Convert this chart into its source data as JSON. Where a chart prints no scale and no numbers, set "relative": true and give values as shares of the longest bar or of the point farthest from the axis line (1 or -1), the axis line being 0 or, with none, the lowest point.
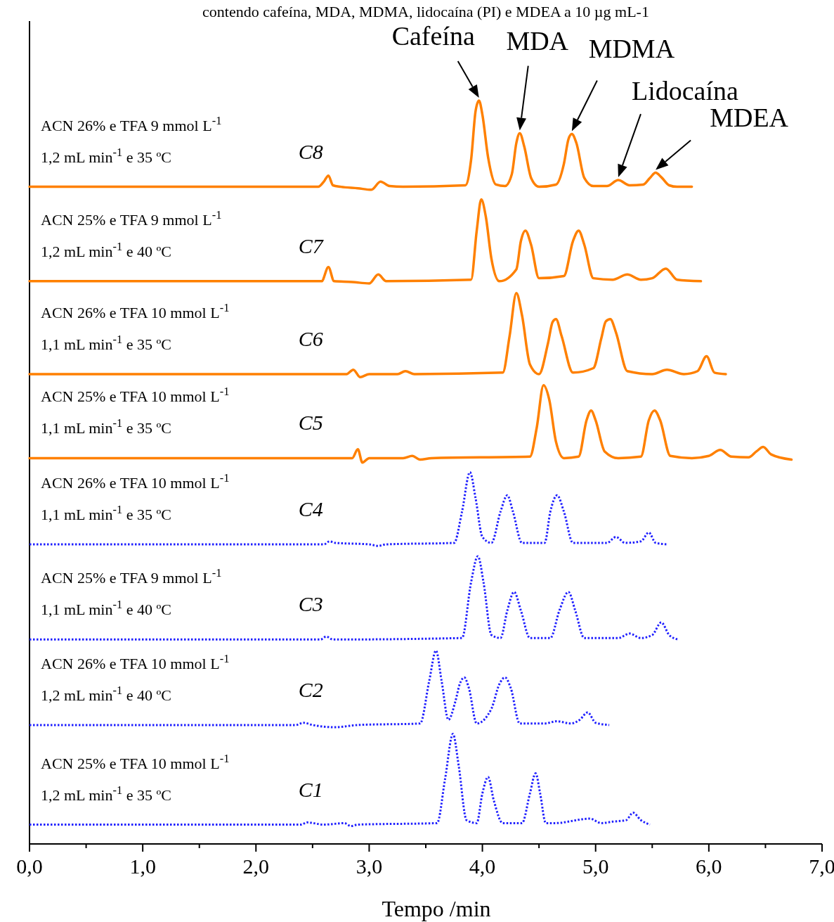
{
  "chart_data": {
    "type": "line",
    "relative": true,
    "title": "contendo cafeína, MDA, MDMA, lidocaína (PI) e MDEA a 10 µg mL-1",
    "xlabel": "Tempo /min",
    "xlim": [
      0,
      7
    ],
    "xticks": [
      {
        "value": 0,
        "label": "0,0"
      },
      {
        "value": 0.5,
        "label": null
      },
      {
        "value": 1,
        "label": "1,0"
      },
      {
        "value": 1.5,
        "label": null
      },
      {
        "value": 2,
        "label": "2,0"
      },
      {
        "value": 2.5,
        "label": null
      },
      {
        "value": 3,
        "label": "3,0"
      },
      {
        "value": 3.5,
        "label": null
      },
      {
        "value": 4,
        "label": "4,0"
      },
      {
        "value": 4.5,
        "label": null
      },
      {
        "value": 5,
        "label": "5,0"
      },
      {
        "value": 5.5,
        "label": null
      },
      {
        "value": 6,
        "label": "6,0"
      },
      {
        "value": 6.5,
        "label": null
      },
      {
        "value": 7,
        "label": "7,0"
      }
    ],
    "legend": false,
    "series": [
      {
        "name": "C8",
        "color": "#ff8000",
        "line_style": "solid",
        "x": [
          0,
          2.55,
          2.6,
          2.64,
          2.68,
          2.75,
          2.9,
          3.02,
          3.1,
          3.18,
          3.3,
          3.85,
          3.9,
          3.94,
          3.97,
          4.0,
          4.05,
          4.12,
          4.2,
          4.26,
          4.3,
          4.33,
          4.37,
          4.43,
          4.5,
          4.65,
          4.72,
          4.76,
          4.79,
          4.83,
          4.9,
          4.98,
          5.1,
          5.2,
          5.3,
          5.42,
          5.48,
          5.53,
          5.58,
          5.65,
          5.72,
          5.85
        ],
        "values": [
          0.884,
          0.884,
          0.891,
          0.899,
          0.886,
          0.884,
          0.882,
          0.88,
          0.891,
          0.885,
          0.884,
          0.886,
          0.92,
          0.986,
          1,
          0.981,
          0.924,
          0.887,
          0.885,
          0.901,
          0.943,
          0.956,
          0.938,
          0.896,
          0.884,
          0.887,
          0.915,
          0.948,
          0.955,
          0.943,
          0.896,
          0.885,
          0.885,
          0.893,
          0.886,
          0.887,
          0.896,
          0.903,
          0.897,
          0.886,
          0.884,
          0.884
        ]
      },
      {
        "name": "C7",
        "color": "#ff8000",
        "line_style": "solid",
        "x": [
          0,
          2.58,
          2.64,
          2.69,
          2.85,
          3.0,
          3.08,
          3.15,
          3.9,
          3.95,
          3.99,
          4.03,
          4.08,
          4.15,
          4.3,
          4.34,
          4.38,
          4.43,
          4.5,
          4.72,
          4.8,
          4.85,
          4.9,
          4.98,
          5.15,
          5.28,
          5.4,
          5.5,
          5.62,
          5.72,
          5.93
        ],
        "values": [
          0.757,
          0.757,
          0.776,
          0.757,
          0.756,
          0.754,
          0.766,
          0.757,
          0.759,
          0.825,
          0.867,
          0.844,
          0.787,
          0.757,
          0.773,
          0.811,
          0.825,
          0.806,
          0.761,
          0.764,
          0.811,
          0.825,
          0.806,
          0.761,
          0.759,
          0.766,
          0.759,
          0.761,
          0.774,
          0.759,
          0.757
        ]
      },
      {
        "name": "C6",
        "color": "#ff8000",
        "line_style": "solid",
        "x": [
          0,
          2.8,
          2.86,
          2.92,
          3.0,
          3.25,
          3.32,
          3.4,
          4.18,
          4.24,
          4.3,
          4.35,
          4.42,
          4.5,
          4.58,
          4.62,
          4.65,
          4.7,
          4.8,
          4.98,
          5.05,
          5.09,
          5.13,
          5.18,
          5.28,
          5.5,
          5.63,
          5.78,
          5.9,
          5.98,
          6.05,
          6.15
        ],
        "values": [
          0.632,
          0.632,
          0.638,
          0.628,
          0.632,
          0.632,
          0.636,
          0.632,
          0.634,
          0.683,
          0.741,
          0.711,
          0.645,
          0.632,
          0.674,
          0.702,
          0.706,
          0.683,
          0.634,
          0.64,
          0.68,
          0.703,
          0.706,
          0.688,
          0.636,
          0.632,
          0.638,
          0.632,
          0.636,
          0.656,
          0.634,
          0.632
        ]
      },
      {
        "name": "C5",
        "color": "#ff8000",
        "line_style": "solid",
        "x": [
          0,
          2.85,
          2.9,
          2.94,
          3.0,
          3.3,
          3.38,
          3.45,
          3.55,
          4.42,
          4.48,
          4.54,
          4.59,
          4.65,
          4.72,
          4.85,
          4.92,
          4.96,
          5.0,
          5.08,
          5.2,
          5.4,
          5.47,
          5.52,
          5.57,
          5.66,
          5.85,
          6.0,
          6.1,
          6.2,
          6.35,
          6.42,
          6.48,
          6.55,
          6.73
        ],
        "values": [
          0.519,
          0.519,
          0.531,
          0.513,
          0.519,
          0.519,
          0.522,
          0.517,
          0.519,
          0.521,
          0.56,
          0.617,
          0.598,
          0.541,
          0.519,
          0.521,
          0.57,
          0.583,
          0.57,
          0.528,
          0.519,
          0.521,
          0.57,
          0.583,
          0.57,
          0.522,
          0.519,
          0.522,
          0.53,
          0.521,
          0.52,
          0.528,
          0.534,
          0.524,
          0.517
        ]
      },
      {
        "name": "C4",
        "color": "#1f1fff",
        "line_style": "dotted",
        "x": [
          0,
          2.6,
          2.65,
          2.7,
          3.0,
          3.08,
          3.15,
          3.75,
          3.82,
          3.89,
          3.94,
          4.0,
          4.08,
          4.16,
          4.22,
          4.27,
          4.35,
          4.55,
          4.6,
          4.66,
          4.72,
          4.8,
          5.1,
          5.18,
          5.26,
          5.4,
          5.47,
          5.53,
          5.63
        ],
        "values": [
          0.403,
          0.403,
          0.407,
          0.405,
          0.403,
          0.401,
          0.403,
          0.405,
          0.447,
          0.5,
          0.465,
          0.413,
          0.405,
          0.447,
          0.469,
          0.447,
          0.405,
          0.405,
          0.447,
          0.469,
          0.447,
          0.405,
          0.405,
          0.413,
          0.405,
          0.407,
          0.419,
          0.405,
          0.403
        ]
      },
      {
        "name": "C3",
        "color": "#1f1fff",
        "line_style": "dotted",
        "x": [
          0,
          2.57,
          2.62,
          2.68,
          3.82,
          3.9,
          3.96,
          4.01,
          4.08,
          4.16,
          4.22,
          4.28,
          4.34,
          4.42,
          4.6,
          4.68,
          4.76,
          4.82,
          4.9,
          5.2,
          5.3,
          5.4,
          5.5,
          5.58,
          5.65,
          5.73
        ],
        "values": [
          0.275,
          0.275,
          0.279,
          0.275,
          0.277,
          0.352,
          0.387,
          0.352,
          0.281,
          0.277,
          0.314,
          0.339,
          0.314,
          0.277,
          0.277,
          0.314,
          0.339,
          0.314,
          0.277,
          0.277,
          0.283,
          0.277,
          0.281,
          0.298,
          0.281,
          0.275
        ]
      },
      {
        "name": "C2",
        "color": "#1f1fff",
        "line_style": "dotted",
        "x": [
          0,
          2.35,
          2.42,
          2.5,
          2.7,
          2.9,
          3.45,
          3.53,
          3.59,
          3.64,
          3.7,
          3.76,
          3.8,
          3.84,
          3.88,
          3.95,
          4.08,
          4.15,
          4.2,
          4.25,
          4.33,
          4.55,
          4.66,
          4.78,
          4.86,
          4.93,
          5.0,
          5.12
        ],
        "values": [
          0.16,
          0.16,
          0.163,
          0.16,
          0.157,
          0.16,
          0.162,
          0.219,
          0.26,
          0.219,
          0.167,
          0.191,
          0.215,
          0.224,
          0.21,
          0.162,
          0.182,
          0.215,
          0.224,
          0.21,
          0.162,
          0.162,
          0.165,
          0.162,
          0.167,
          0.177,
          0.163,
          0.16
        ]
      },
      {
        "name": "C1",
        "color": "#1f1fff",
        "line_style": "dotted",
        "x": [
          0,
          2.4,
          2.45,
          2.6,
          2.78,
          2.84,
          2.9,
          3.6,
          3.67,
          3.74,
          3.79,
          3.86,
          3.95,
          4.0,
          4.05,
          4.1,
          4.18,
          4.35,
          4.42,
          4.47,
          4.51,
          4.56,
          4.64,
          4.95,
          5.05,
          5.15,
          5.27,
          5.33,
          5.4,
          5.48
        ],
        "values": [
          0.026,
          0.026,
          0.029,
          0.026,
          0.028,
          0.024,
          0.026,
          0.028,
          0.087,
          0.148,
          0.106,
          0.032,
          0.028,
          0.068,
          0.09,
          0.059,
          0.028,
          0.028,
          0.068,
          0.095,
          0.068,
          0.028,
          0.028,
          0.034,
          0.028,
          0.03,
          0.032,
          0.042,
          0.032,
          0.026
        ]
      }
    ],
    "annotations": [
      "ACN 26% e TFA 9 mmol L$^{-1}$",
      "1,2 mL min$^{-1}$ e 35 ºC",
      "ACN 25% e TFA 9 mmol L$^{-1}$",
      "1,2 mL min$^{-1}$ e 40 ºC",
      "ACN 26% e TFA 10 mmol L$^{-1}$",
      "1,1 mL min$^{-1}$ e 35 ºC",
      "ACN 25% e TFA 10 mmol L$^{-1}$",
      "1,1 mL min$^{-1}$ e 35 ºC",
      "ACN 26% e TFA 10 mmol L$^{-1}$",
      "1,1 mL min$^{-1}$ e 35 ºC",
      "ACN 25% e TFA 9 mmol L$^{-1}$",
      "1,1 mL min$^{-1}$ e 40 ºC",
      "ACN 26% e TFA 10 mmol L$^{-1}$",
      "1,2 mL min$^{-1}$ e 40 ºC",
      "ACN 25% e TFA 10 mmol L$^{-1}$",
      "1,2 mL min$^{-1}$ e 35 ºC",
      {
        "text": "Cafeína",
        "x": 3.97,
        "y": 1
      },
      {
        "text": "MDA",
        "x": 4.33,
        "y": 0.956
      },
      {
        "text": "MDMA",
        "x": 4.79,
        "y": 0.955
      },
      {
        "text": "Lidocaína",
        "x": 5.2,
        "y": 0.893
      },
      {
        "text": "MDEA",
        "x": 5.53,
        "y": 0.903
      }
    ]
  }
}
